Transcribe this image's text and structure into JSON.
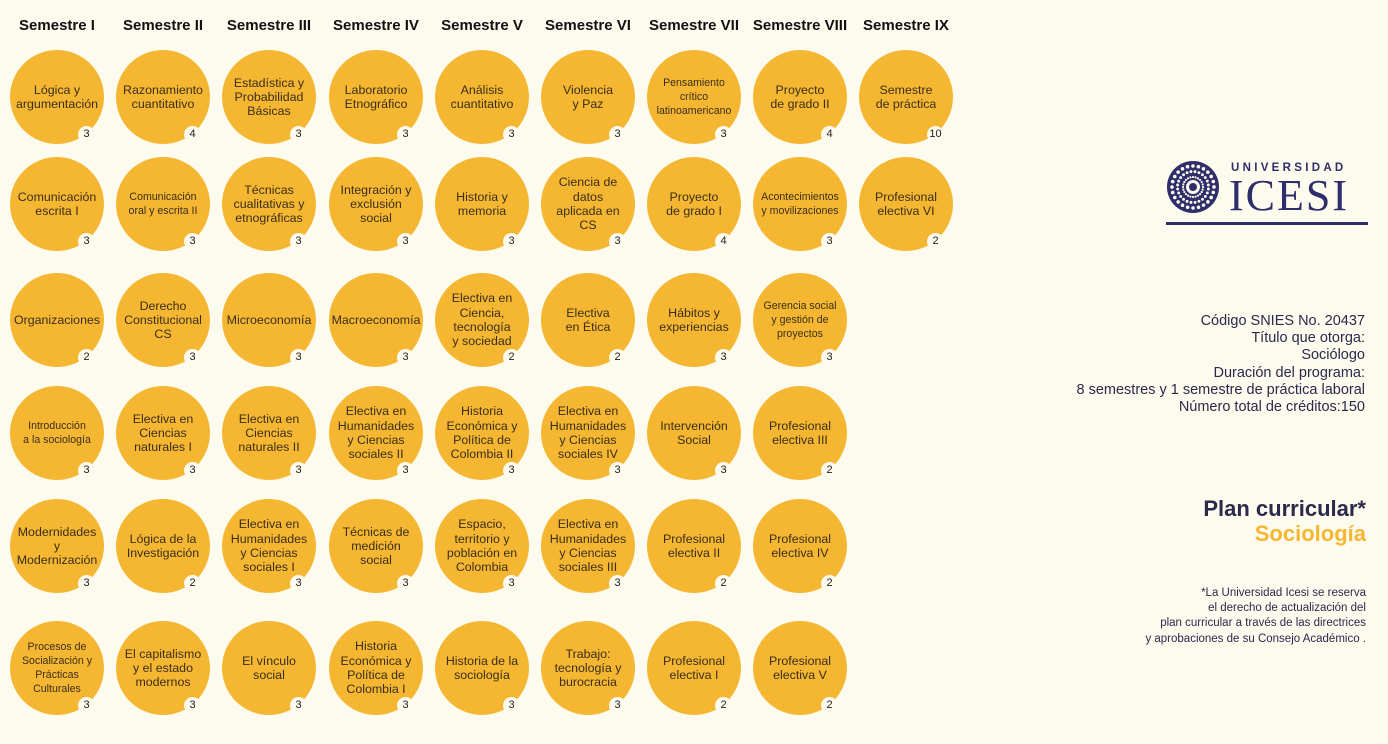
{
  "semesters": [
    "Semestre I",
    "Semestre II",
    "Semestre III",
    "Semestre IV",
    "Semestre V",
    "Semestre VI",
    "Semestre VII",
    "Semestre VIII",
    "Semestre IX"
  ],
  "courses": [
    {
      "name": "Lógica y\nargumentación",
      "credits": "3"
    },
    {
      "name": "Razonamiento\ncuantitativo",
      "credits": "4"
    },
    {
      "name": "Estadística y\nProbabilidad\nBásicas",
      "credits": "3"
    },
    {
      "name": "Laboratorio\nEtnográfico",
      "credits": "3"
    },
    {
      "name": "Análisis\ncuantitativo",
      "credits": "3"
    },
    {
      "name": "Violencia\ny Paz",
      "credits": "3"
    },
    {
      "name": "Pensamiento\ncrítico\nlatinoamericano",
      "credits": "3"
    },
    {
      "name": "Proyecto\nde grado II",
      "credits": "4"
    },
    {
      "name": "Semestre\nde práctica",
      "credits": "10"
    },
    {
      "name": "Comunicación\nescrita I",
      "credits": "3"
    },
    {
      "name": "Comunicación\noral y escrita II",
      "credits": "3"
    },
    {
      "name": "Técnicas\ncualitativas y\netnográficas",
      "credits": "3"
    },
    {
      "name": "Integración y\nexclusión\nsocial",
      "credits": "3"
    },
    {
      "name": "Historia y\nmemoria",
      "credits": "3"
    },
    {
      "name": "Ciencia de\ndatos\naplicada en\nCS",
      "credits": "3"
    },
    {
      "name": "Proyecto\nde grado I",
      "credits": "4"
    },
    {
      "name": "Acontecimientos\ny movilizaciones",
      "credits": "3"
    },
    {
      "name": "Profesional\nelectiva VI",
      "credits": "2"
    },
    {
      "name": "Organizaciones",
      "credits": "2"
    },
    {
      "name": "Derecho\nConstitucional\nCS",
      "credits": "3"
    },
    {
      "name": "Microeconomía",
      "credits": "3"
    },
    {
      "name": "Macroeconomía",
      "credits": "3"
    },
    {
      "name": "Electiva en\nCiencia,\ntecnología\ny sociedad",
      "credits": "2"
    },
    {
      "name": "Electiva\nen Ética",
      "credits": "2"
    },
    {
      "name": "Hábitos y\nexperiencias",
      "credits": "3"
    },
    {
      "name": "Gerencia social\ny gestión de\nproyectos",
      "credits": "3"
    },
    {
      "name": "Introducción\na la sociología",
      "credits": "3"
    },
    {
      "name": "Electiva en\nCiencias\nnaturales I",
      "credits": "3"
    },
    {
      "name": "Electiva en\nCiencias\nnaturales II",
      "credits": "3"
    },
    {
      "name": "Electiva en\nHumanidades\ny Ciencias\nsociales II",
      "credits": "3"
    },
    {
      "name": "Historia\nEconómica y\nPolítica de\nColombia II",
      "credits": "3"
    },
    {
      "name": "Electiva en\nHumanidades\ny Ciencias\nsociales IV",
      "credits": "3"
    },
    {
      "name": "Intervención\nSocial",
      "credits": "3"
    },
    {
      "name": "Profesional\nelectiva III",
      "credits": "2"
    },
    {
      "name": "Modernidades y\nModernización",
      "credits": "3"
    },
    {
      "name": "Lógica de la\nInvestigación",
      "credits": "2"
    },
    {
      "name": "Electiva en\nHumanidades\ny Ciencias\nsociales I",
      "credits": "3"
    },
    {
      "name": "Técnicas de\nmedición\nsocial",
      "credits": "3"
    },
    {
      "name": "Espacio,\nterritorio y\npoblación en\nColombia",
      "credits": "3"
    },
    {
      "name": "Electiva en\nHumanidades\ny Ciencias\nsociales III",
      "credits": "3"
    },
    {
      "name": "Profesional\nelectiva II",
      "credits": "2"
    },
    {
      "name": "Profesional\nelectiva IV",
      "credits": "2"
    },
    {
      "name": "Procesos de\nSocialización y\nPrácticas\nCulturales",
      "credits": "3"
    },
    {
      "name": "El capitalismo\ny el estado\nmodernos",
      "credits": "3"
    },
    {
      "name": "El vínculo\nsocial",
      "credits": "3"
    },
    {
      "name": "Historia\nEconómica y\nPolítica de\nColombia I",
      "credits": "3"
    },
    {
      "name": "Historia de la\nsociología",
      "credits": "3"
    },
    {
      "name": "Trabajo:\ntecnología y\nburocracia",
      "credits": "3"
    },
    {
      "name": "Profesional\nelectiva I",
      "credits": "2"
    },
    {
      "name": "Profesional\nelectiva V",
      "credits": "2"
    }
  ],
  "logo": {
    "subtitle": "UNIVERSIDAD",
    "name": "ICESI",
    "color": "#2e2e6a"
  },
  "program_info": {
    "snies": "Código SNIES No. 20437",
    "title_label": "Título que otorga:",
    "title_value": "Sociólogo",
    "duration_label": "Duración del programa:",
    "duration_value": "8 semestres y 1 semestre de práctica laboral",
    "credits": "Número total de créditos:150"
  },
  "plan": {
    "title": "Plan curricular*",
    "program": "Sociología"
  },
  "disclaimer": [
    "*La Universidad Icesi se reserva",
    "el derecho de actualización del",
    "plan curricular a través de las directrices",
    "y aprobaciones de su Consejo Académico ."
  ],
  "colors": {
    "circle": "#f5b731",
    "background": "#fdfaee",
    "text": "#2b2a4a"
  }
}
